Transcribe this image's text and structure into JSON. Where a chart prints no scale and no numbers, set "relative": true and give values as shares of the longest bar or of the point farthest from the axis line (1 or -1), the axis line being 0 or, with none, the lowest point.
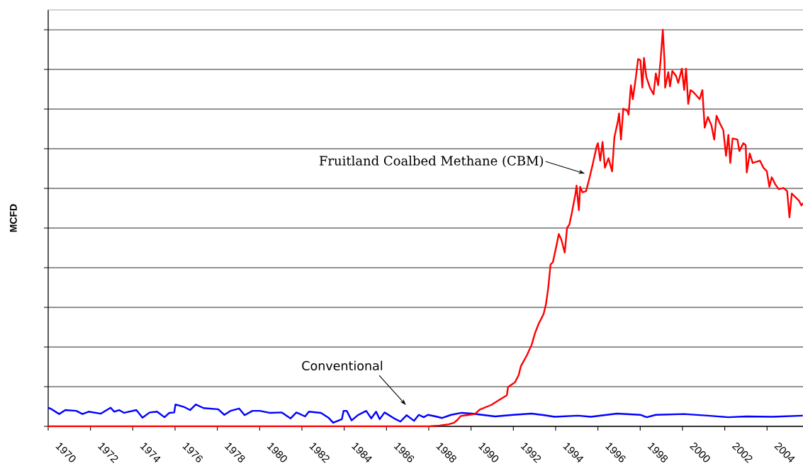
{
  "chart_data": {
    "type": "line",
    "ylabel": "MCFD",
    "relative": true,
    "grid": "y",
    "xlim": [
      1970,
      2005.7
    ],
    "xticks": [
      1970,
      1972,
      1974,
      1976,
      1978,
      1980,
      1982,
      1984,
      1986,
      1988,
      1990,
      1992,
      1994,
      1996,
      1998,
      2000,
      2002,
      2004
    ],
    "annotations": [
      "Fruitland Coalbed Methane (CBM)",
      "Conventional"
    ],
    "series": [
      {
        "color": "#0000ff",
        "x": [
          1970.0,
          1970.17,
          1970.52,
          1970.81,
          1971.33,
          1971.62,
          1971.91,
          1972.49,
          1972.95,
          1973.12,
          1973.36,
          1973.59,
          1974.17,
          1974.46,
          1974.8,
          1975.15,
          1975.5,
          1975.73,
          1975.96,
          1976.02,
          1976.42,
          1976.71,
          1976.98,
          1977.35,
          1978.04,
          1978.33,
          1978.62,
          1979.03,
          1979.29,
          1979.66,
          1980.01,
          1980.47,
          1981.05,
          1981.46,
          1981.74,
          1982.15,
          1982.33,
          1982.9,
          1983.25,
          1983.48,
          1983.89,
          1983.97,
          1984.12,
          1984.35,
          1984.64,
          1985.04,
          1985.28,
          1985.51,
          1985.68,
          1985.91,
          1986.43,
          1986.66,
          1986.95,
          1987.3,
          1987.53,
          1987.76,
          1987.96,
          1988.33,
          1988.63,
          1989.06,
          1989.55,
          1990.04,
          1991.14,
          1992.0,
          1992.86,
          1993.35,
          1993.96,
          1995.06,
          1995.67,
          1996.9,
          1998.0,
          1998.31,
          1998.74,
          2000.08,
          2001.19,
          2002.17,
          2003.02,
          2004.25,
          2005.69
        ],
        "values": [
          0.047,
          0.043,
          0.031,
          0.041,
          0.039,
          0.031,
          0.037,
          0.032,
          0.047,
          0.037,
          0.041,
          0.034,
          0.041,
          0.022,
          0.035,
          0.037,
          0.023,
          0.034,
          0.035,
          0.055,
          0.049,
          0.041,
          0.055,
          0.046,
          0.043,
          0.029,
          0.039,
          0.045,
          0.028,
          0.039,
          0.039,
          0.034,
          0.035,
          0.02,
          0.035,
          0.025,
          0.037,
          0.034,
          0.022,
          0.009,
          0.018,
          0.039,
          0.039,
          0.015,
          0.028,
          0.039,
          0.02,
          0.037,
          0.018,
          0.035,
          0.018,
          0.012,
          0.028,
          0.014,
          0.029,
          0.023,
          0.029,
          0.025,
          0.021,
          0.029,
          0.034,
          0.032,
          0.025,
          0.029,
          0.032,
          0.029,
          0.024,
          0.027,
          0.024,
          0.032,
          0.029,
          0.023,
          0.029,
          0.031,
          0.027,
          0.023,
          0.025,
          0.024,
          0.027
        ]
      },
      {
        "color": "#ff0000",
        "x": [
          1970.0,
          1980.0,
          1988.0,
          1988.5,
          1988.94,
          1989.2,
          1989.35,
          1989.51,
          1989.8,
          1990.18,
          1990.41,
          1990.96,
          1991.41,
          1991.69,
          1991.75,
          1992.08,
          1992.25,
          1992.36,
          1992.64,
          1992.87,
          1993.03,
          1993.2,
          1993.43,
          1993.54,
          1993.65,
          1993.76,
          1993.87,
          1994.04,
          1994.15,
          1994.27,
          1994.43,
          1994.54,
          1994.65,
          1994.77,
          1994.94,
          1994.99,
          1995.1,
          1995.16,
          1995.27,
          1995.44,
          1995.61,
          1995.78,
          1995.94,
          1996.0,
          1996.11,
          1996.22,
          1996.33,
          1996.5,
          1996.67,
          1996.78,
          1996.95,
          1997.0,
          1997.09,
          1997.2,
          1997.4,
          1997.45,
          1997.56,
          1997.65,
          1997.79,
          1997.9,
          1998.01,
          1998.1,
          1998.18,
          1998.29,
          1998.46,
          1998.63,
          1998.74,
          1998.85,
          1998.96,
          1999.07,
          1999.15,
          1999.18,
          1999.33,
          1999.41,
          1999.52,
          1999.69,
          1999.8,
          1999.97,
          2000.08,
          2000.17,
          2000.27,
          2000.38,
          2000.53,
          2000.81,
          2000.94,
          2001.05,
          2001.2,
          2001.37,
          2001.5,
          2001.61,
          2001.76,
          2001.93,
          2002.06,
          2002.17,
          2002.26,
          2002.37,
          2002.6,
          2002.69,
          2002.88,
          2002.99,
          2003.04,
          2003.18,
          2003.32,
          2003.66,
          2003.83,
          2003.99,
          2004.11,
          2004.22,
          2004.39,
          2004.55,
          2004.78,
          2004.95,
          2005.06,
          2005.17,
          2005.34,
          2005.51,
          2005.62,
          2005.7
        ],
        "values": [
          0,
          0,
          0,
          0.002,
          0.005,
          0.009,
          0.016,
          0.026,
          0.028,
          0.031,
          0.042,
          0.054,
          0.069,
          0.078,
          0.099,
          0.111,
          0.129,
          0.152,
          0.179,
          0.206,
          0.236,
          0.259,
          0.283,
          0.307,
          0.349,
          0.408,
          0.414,
          0.456,
          0.485,
          0.471,
          0.438,
          0.5,
          0.509,
          0.539,
          0.587,
          0.607,
          0.545,
          0.604,
          0.59,
          0.593,
          0.628,
          0.667,
          0.706,
          0.714,
          0.67,
          0.717,
          0.652,
          0.676,
          0.643,
          0.729,
          0.771,
          0.789,
          0.723,
          0.801,
          0.795,
          0.786,
          0.86,
          0.825,
          0.878,
          0.926,
          0.923,
          0.854,
          0.929,
          0.881,
          0.854,
          0.837,
          0.89,
          0.86,
          0.92,
          1,
          0.92,
          0.854,
          0.893,
          0.857,
          0.896,
          0.884,
          0.866,
          0.902,
          0.848,
          0.902,
          0.813,
          0.848,
          0.842,
          0.825,
          0.848,
          0.753,
          0.78,
          0.759,
          0.723,
          0.783,
          0.765,
          0.747,
          0.682,
          0.735,
          0.664,
          0.726,
          0.723,
          0.694,
          0.714,
          0.709,
          0.64,
          0.688,
          0.664,
          0.67,
          0.652,
          0.643,
          0.604,
          0.628,
          0.61,
          0.598,
          0.601,
          0.593,
          0.527,
          0.587,
          0.578,
          0.569,
          0.557,
          0.563
        ]
      }
    ]
  }
}
